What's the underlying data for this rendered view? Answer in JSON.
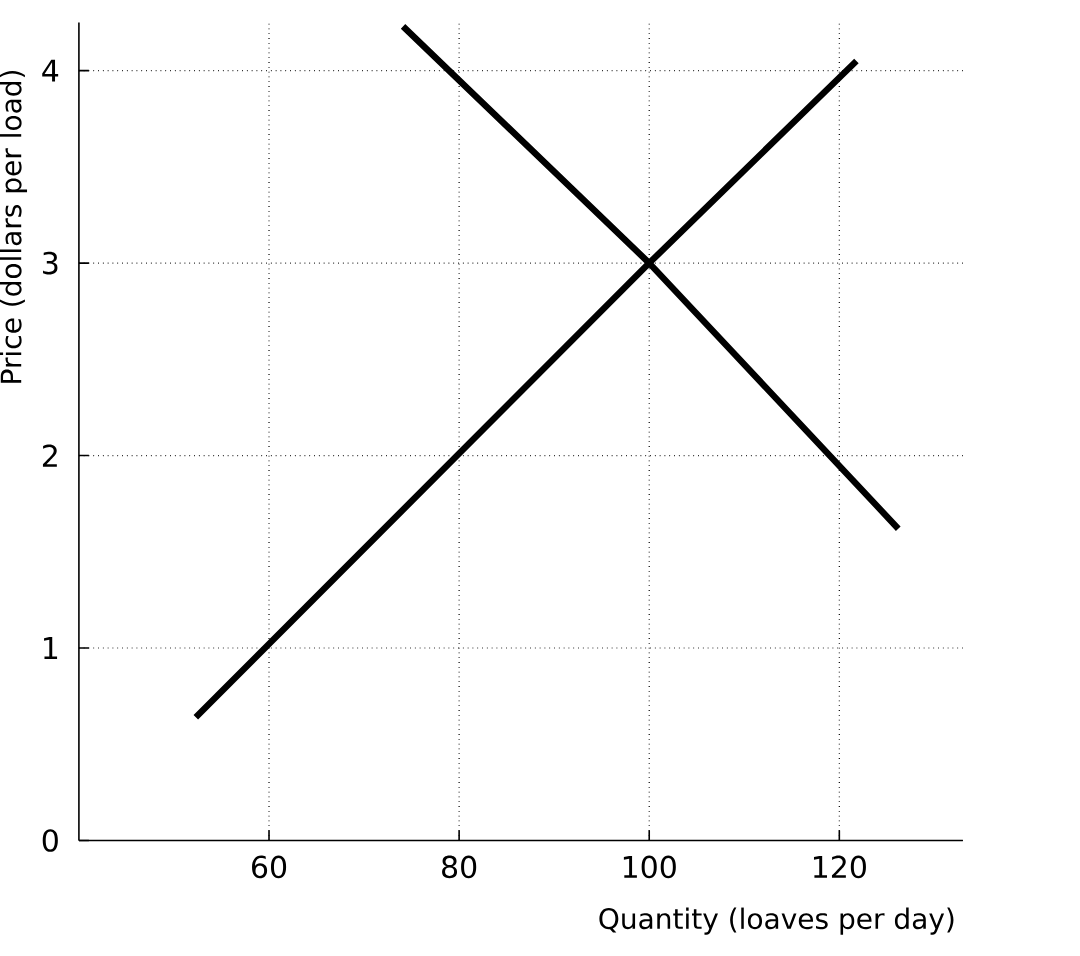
{
  "chart_data": {
    "type": "line",
    "xlabel": "Quantity (loaves per day)",
    "ylabel": "Price (dollars per load)",
    "series": [
      {
        "color": "#000000",
        "x": [
          52.3,
          100,
          121.8
        ],
        "values": [
          0.64,
          3,
          4.05
        ]
      },
      {
        "color": "#000000",
        "x": [
          74.1,
          100,
          126.2
        ],
        "values": [
          4.23,
          3,
          1.62
        ]
      }
    ],
    "xlim": [
      40,
      133
    ],
    "ylim": [
      0,
      4.25
    ],
    "xticks": [
      60,
      80,
      100,
      120
    ],
    "yticks": [
      0,
      1,
      2,
      3,
      4
    ],
    "grid": true
  }
}
